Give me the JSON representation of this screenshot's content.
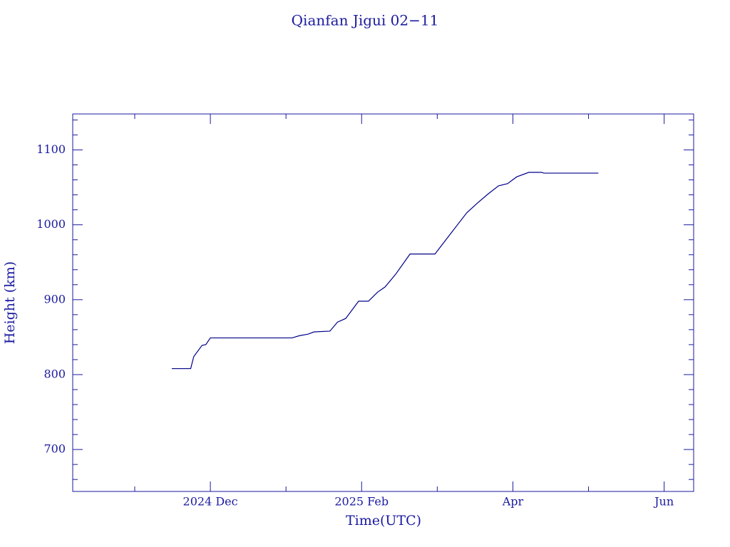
{
  "chart_data": {
    "type": "line",
    "title": "Qianfan Jigui 02−11",
    "x_label": "Time(UTC)",
    "y_label": "Height (km)",
    "color": "#00008b",
    "xlim": [
      -1.82,
      6.39
    ],
    "xticks": [
      {
        "value": 0,
        "label": "2024 Dec"
      },
      {
        "value": 2,
        "label": "2025 Feb"
      },
      {
        "value": 4,
        "label": "Apr"
      },
      {
        "value": 6,
        "label": "Jun"
      }
    ],
    "xticks_minor": [
      -1,
      1,
      3,
      5
    ],
    "ylim": [
      644,
      1148
    ],
    "yticks": [
      700,
      800,
      900,
      1000,
      1100
    ],
    "yticks_minor": [
      660,
      680,
      720,
      740,
      760,
      780,
      820,
      840,
      860,
      880,
      920,
      940,
      960,
      980,
      1020,
      1040,
      1060,
      1080,
      1120,
      1140
    ],
    "grid": false,
    "series": [
      {
        "name": "Qianfan Jigui 02−11",
        "color": "#00008b",
        "x": [
          -0.51,
          -0.26,
          -0.22,
          -0.11,
          -0.06,
          0,
          1.08,
          1.18,
          1.29,
          1.37,
          1.58,
          1.68,
          1.79,
          1.96,
          2.09,
          2.21,
          2.31,
          2.45,
          2.64,
          2.97,
          3.16,
          3.39,
          3.53,
          3.67,
          3.81,
          3.93,
          4.05,
          4.21,
          4.38,
          4.41,
          5.13
        ],
        "values": [
          808,
          808,
          824,
          839,
          840,
          849,
          849,
          852,
          854,
          857,
          858,
          870,
          875,
          898,
          898,
          910,
          917,
          934,
          961,
          961,
          986,
          1016,
          1029,
          1041,
          1052,
          1055,
          1064,
          1070,
          1070,
          1069,
          1069
        ]
      }
    ]
  }
}
